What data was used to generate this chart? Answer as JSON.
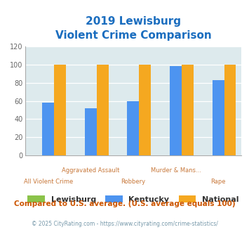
{
  "title_line1": "2019 Lewisburg",
  "title_line2": "Violent Crime Comparison",
  "series": {
    "Lewisburg": [
      0,
      0,
      0,
      0,
      0
    ],
    "Kentucky": [
      58,
      52,
      60,
      98,
      83
    ],
    "National": [
      100,
      100,
      100,
      100,
      100
    ]
  },
  "colors": {
    "Lewisburg": "#8bc34a",
    "Kentucky": "#4d94f0",
    "National": "#f5a820"
  },
  "line1_labels": [
    "",
    "Aggravated Assault",
    "",
    "Murder & Mans...",
    ""
  ],
  "line2_labels": [
    "All Violent Crime",
    "",
    "Robbery",
    "",
    "Rape"
  ],
  "ylim": [
    0,
    120
  ],
  "yticks": [
    0,
    20,
    40,
    60,
    80,
    100,
    120
  ],
  "background_color": "#ffffff",
  "plot_bg_color": "#ddeaed",
  "title_color": "#1a6dbf",
  "axis_label_color_line1": "#c8783a",
  "axis_label_color_line2": "#c8783a",
  "legend_text_color": "#333333",
  "note_text": "Compared to U.S. average. (U.S. average equals 100)",
  "note_color": "#cc5500",
  "footer_text": "© 2025 CityRating.com - https://www.cityrating.com/crime-statistics/",
  "footer_color": "#7799aa",
  "bar_width": 0.28,
  "n_categories": 5
}
